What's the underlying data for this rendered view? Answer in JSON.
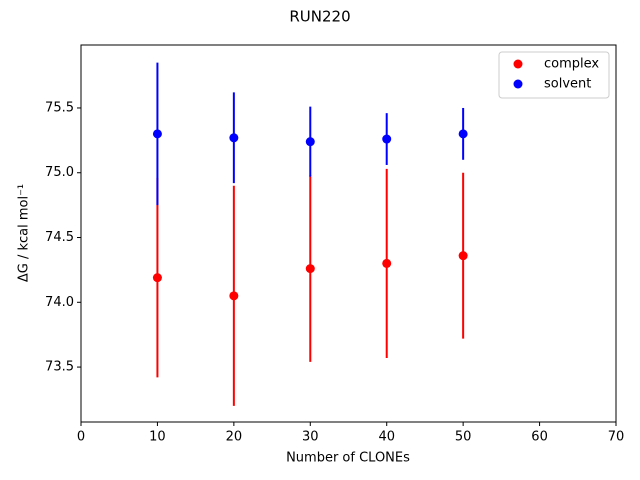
{
  "chart_data": {
    "type": "errorbar-scatter",
    "title": "RUN220",
    "x_label": "Number of CLONEs",
    "y_label": "ΔG / kcal mol⁻¹",
    "x": [
      10,
      20,
      30,
      40,
      50
    ],
    "series": [
      {
        "name": "complex",
        "color": "#ff0000",
        "values": [
          74.19,
          74.05,
          74.26,
          74.3,
          74.36
        ],
        "errors": [
          0.77,
          0.85,
          0.72,
          0.73,
          0.64
        ]
      },
      {
        "name": "solvent",
        "color": "#0000ff",
        "values": [
          75.3,
          75.27,
          75.24,
          75.26,
          75.3
        ],
        "errors": [
          0.55,
          0.35,
          0.27,
          0.2,
          0.2
        ]
      }
    ],
    "xlim": [
      0,
      70
    ],
    "xticks": [
      0,
      10,
      20,
      30,
      40,
      50,
      60,
      70
    ],
    "ylim": [
      73.076,
      75.986
    ],
    "yticks": [
      {
        "value": 73.5,
        "label": "73.5"
      },
      {
        "value": 74.0,
        "label": "74.0"
      },
      {
        "value": 74.5,
        "label": "74.5"
      },
      {
        "value": 75.0,
        "label": "75.0"
      },
      {
        "value": 75.5,
        "label": "75.5"
      }
    ],
    "legend": "upper right",
    "grid": false
  }
}
